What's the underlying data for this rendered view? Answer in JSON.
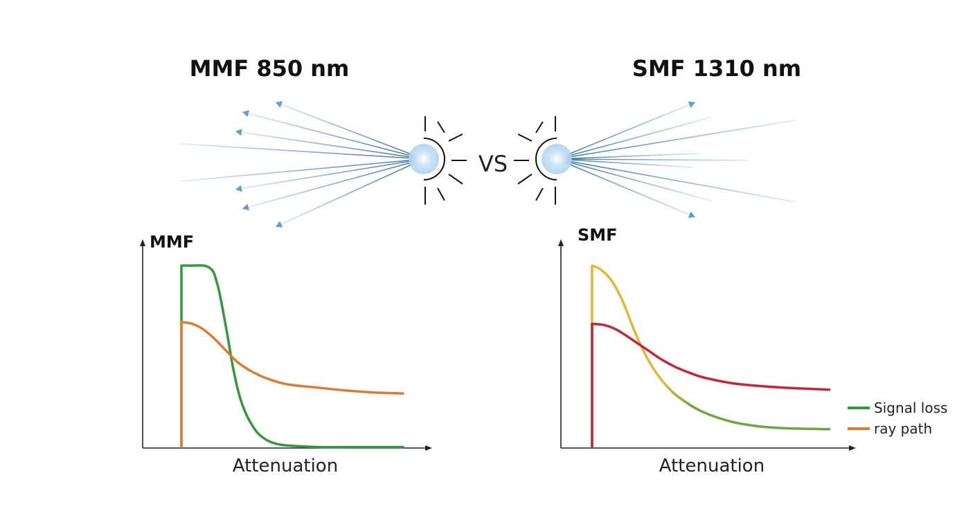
{
  "left_panel": {
    "title": "MMF 850 nm"
  },
  "vs_label": "VS",
  "right_panel": {
    "title": "SMF 1310 nm"
  },
  "colors": {
    "ray": "#2f6f9f",
    "arrow": "#5a9fd0",
    "glow": "#a9d1ee",
    "mmf_signal": "#2e9a3a",
    "mmf_ray": "#e07b2e",
    "smf_signal_top": "#e8b431",
    "smf_signal_tail": "#6aaa3a",
    "smf_ray": "#cc2233",
    "axis": "#222222"
  },
  "icons": [
    "light-source-icon",
    "light-source-icon",
    "arrowhead-icon"
  ],
  "chart_data": [
    {
      "type": "line",
      "title": "MMF",
      "xlabel": "Attenuation",
      "ylabel": "",
      "xlim": [
        0,
        10
      ],
      "ylim": [
        0,
        10
      ],
      "grid": false,
      "series": [
        {
          "key": "signal",
          "color": "#2e9a3a",
          "x": [
            0.0,
            0.0,
            0.3,
            1.0,
            1.3,
            1.6,
            1.9,
            2.2,
            2.6,
            3.0,
            3.5,
            4.2,
            5.0,
            6.0,
            7.0,
            8.0
          ],
          "y": [
            0.0,
            9.7,
            9.7,
            9.6,
            8.7,
            6.5,
            4.0,
            2.3,
            1.1,
            0.5,
            0.2,
            0.1,
            0.05,
            0.05,
            0.05,
            0.05
          ]
        },
        {
          "key": "ray",
          "color": "#e07b2e",
          "x": [
            0.0,
            0.0,
            0.4,
            0.8,
            1.2,
            1.6,
            2.0,
            2.5,
            3.0,
            3.5,
            4.0,
            5.0,
            6.0,
            7.0,
            8.0
          ],
          "y": [
            0.0,
            6.7,
            6.6,
            6.3,
            5.8,
            5.2,
            4.6,
            4.1,
            3.75,
            3.5,
            3.35,
            3.2,
            3.05,
            2.95,
            2.9
          ]
        }
      ]
    },
    {
      "type": "line",
      "title": "SMF",
      "xlabel": "Attenuation",
      "ylabel": "",
      "xlim": [
        0,
        10
      ],
      "ylim": [
        0,
        10
      ],
      "grid": false,
      "legend": {
        "position": "bottom-right",
        "entries": [
          {
            "label": "Signal loss",
            "color": "#2e9a3a"
          },
          {
            "label": "ray path",
            "color": "#e07b2e"
          }
        ]
      },
      "series": [
        {
          "key": "signal",
          "color": "#e8b431",
          "tail_color": "#6aaa3a",
          "x": [
            0.0,
            0.0,
            0.3,
            0.7,
            1.1,
            1.5,
            1.9,
            2.3,
            2.8,
            3.3,
            4.0,
            5.0,
            6.0,
            7.0,
            8.5
          ],
          "y": [
            0.0,
            9.7,
            9.5,
            8.9,
            7.8,
            6.3,
            5.0,
            4.0,
            3.1,
            2.5,
            1.9,
            1.4,
            1.15,
            1.05,
            1.0
          ]
        },
        {
          "key": "ray",
          "color": "#cc2233",
          "x": [
            0.0,
            0.0,
            0.4,
            0.8,
            1.2,
            1.6,
            2.0,
            2.5,
            3.0,
            3.5,
            4.0,
            5.0,
            6.0,
            7.0,
            8.5
          ],
          "y": [
            0.0,
            6.6,
            6.55,
            6.35,
            6.0,
            5.6,
            5.2,
            4.7,
            4.3,
            4.0,
            3.75,
            3.45,
            3.3,
            3.2,
            3.1
          ]
        }
      ]
    }
  ]
}
